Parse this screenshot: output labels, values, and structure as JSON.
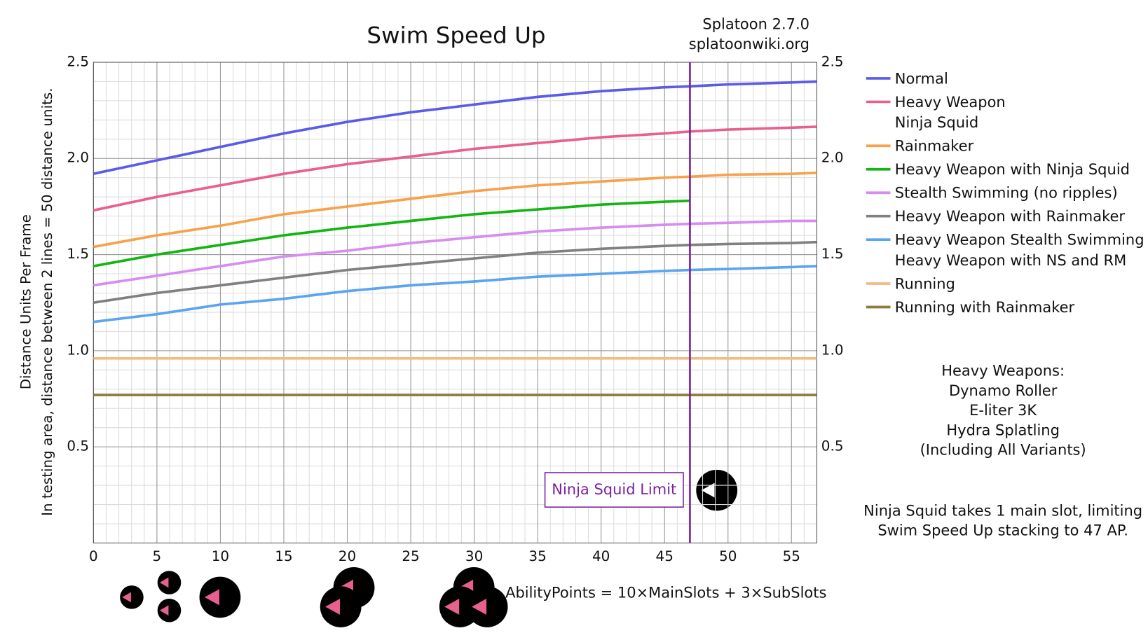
{
  "chart_data": {
    "type": "line",
    "title": "Swim Speed Up",
    "source": [
      "Splatoon 2.7.0",
      "splatoonwiki.org"
    ],
    "ylabel": [
      "Distance Units Per Frame",
      "In testing area, distance between 2 lines = 50 distance units."
    ],
    "x": [
      0,
      5,
      10,
      15,
      20,
      25,
      30,
      35,
      40,
      45,
      47,
      50,
      55,
      57
    ],
    "series": [
      {
        "name": "Normal",
        "color": "#5b5bea",
        "values": [
          1.92,
          1.99,
          2.06,
          2.13,
          2.19,
          2.24,
          2.28,
          2.32,
          2.35,
          2.37,
          2.375,
          2.385,
          2.395,
          2.4
        ]
      },
      {
        "name": "Heavy Weapon\nNinja Squid",
        "color": "#e8608f",
        "values": [
          1.73,
          1.8,
          1.86,
          1.92,
          1.97,
          2.01,
          2.05,
          2.08,
          2.11,
          2.13,
          2.14,
          2.15,
          2.16,
          2.165
        ]
      },
      {
        "name": "Rainmaker",
        "color": "#f7a24a",
        "values": [
          1.54,
          1.6,
          1.65,
          1.71,
          1.75,
          1.79,
          1.83,
          1.86,
          1.88,
          1.9,
          1.905,
          1.915,
          1.92,
          1.925
        ]
      },
      {
        "name": "Heavy Weapon with Ninja Squid",
        "color": "#13b513",
        "values": [
          1.44,
          1.5,
          1.55,
          1.6,
          1.64,
          1.675,
          1.71,
          1.735,
          1.76,
          1.775,
          1.78,
          null,
          null,
          null
        ]
      },
      {
        "name": "Stealth Swimming (no ripples)",
        "color": "#d68cf0",
        "values": [
          1.34,
          1.39,
          1.44,
          1.49,
          1.52,
          1.56,
          1.59,
          1.62,
          1.64,
          1.655,
          1.66,
          1.665,
          1.675,
          1.675
        ]
      },
      {
        "name": "Heavy Weapon with Rainmaker",
        "color": "#808080",
        "values": [
          1.25,
          1.3,
          1.34,
          1.38,
          1.42,
          1.45,
          1.48,
          1.51,
          1.53,
          1.545,
          1.55,
          1.555,
          1.56,
          1.565
        ]
      },
      {
        "name": "Heavy Weapon Stealth Swimming\nHeavy Weapon with NS and RM",
        "color": "#5aa5f0",
        "values": [
          1.15,
          1.19,
          1.24,
          1.27,
          1.31,
          1.34,
          1.36,
          1.385,
          1.4,
          1.415,
          1.42,
          1.425,
          1.435,
          1.44
        ]
      },
      {
        "name": "Running",
        "color": "#f0bd85",
        "values": [
          0.96,
          0.96,
          0.96,
          0.96,
          0.96,
          0.96,
          0.96,
          0.96,
          0.96,
          0.96,
          0.96,
          0.96,
          0.96,
          0.96
        ]
      },
      {
        "name": "Running with Rainmaker",
        "color": "#8c7a3c",
        "values": [
          0.77,
          0.77,
          0.77,
          0.77,
          0.77,
          0.77,
          0.77,
          0.77,
          0.77,
          0.77,
          0.77,
          0.77,
          0.77,
          0.77
        ]
      }
    ],
    "xlim": [
      0,
      57
    ],
    "xticks": [
      0,
      5,
      10,
      15,
      20,
      25,
      30,
      35,
      40,
      45,
      50,
      55
    ],
    "ylim": [
      0,
      2.5
    ],
    "yticks": [
      0.5,
      {
        "value": 1,
        "label": "1.0"
      },
      1.5,
      {
        "value": 2,
        "label": "2.0"
      },
      2.5
    ],
    "xminorticks": [
      0,
      1,
      2,
      3,
      4,
      5,
      6,
      7,
      8,
      9,
      10,
      11,
      12,
      13,
      14,
      15,
      16,
      17,
      18,
      19,
      20,
      21,
      22,
      23,
      24,
      25,
      26,
      27,
      28,
      29,
      30,
      31,
      32,
      33,
      34,
      35,
      36,
      37,
      38,
      39,
      40,
      41,
      42,
      43,
      44,
      45,
      46,
      47,
      48,
      49,
      50,
      51,
      52,
      53,
      54,
      55,
      56,
      57
    ],
    "yminorticks": [
      0.1,
      0.2,
      0.3,
      0.4,
      0.5,
      0.6,
      0.7,
      0.8,
      0.9,
      1,
      1.1,
      1.2,
      1.3,
      1.4,
      1.5,
      1.6,
      1.7,
      1.8,
      1.9,
      2,
      2.1,
      2.2,
      2.3,
      2.4,
      2.5
    ],
    "grid": true,
    "vline": {
      "x": 47,
      "label": "Ninja Squid Limit",
      "color": "#7b1fa2"
    },
    "notes": [
      "Heavy Weapons:",
      "Dynamo Roller",
      "E-liter 3K",
      "Hydra Splatling",
      "(Including All Variants)"
    ],
    "footnote": [
      "Ninja Squid takes 1 main slot, limiting",
      "Swim Speed Up stacking to 47 AP."
    ],
    "formula": "AbilityPoints = 10×MainSlots + 3×SubSlots"
  }
}
